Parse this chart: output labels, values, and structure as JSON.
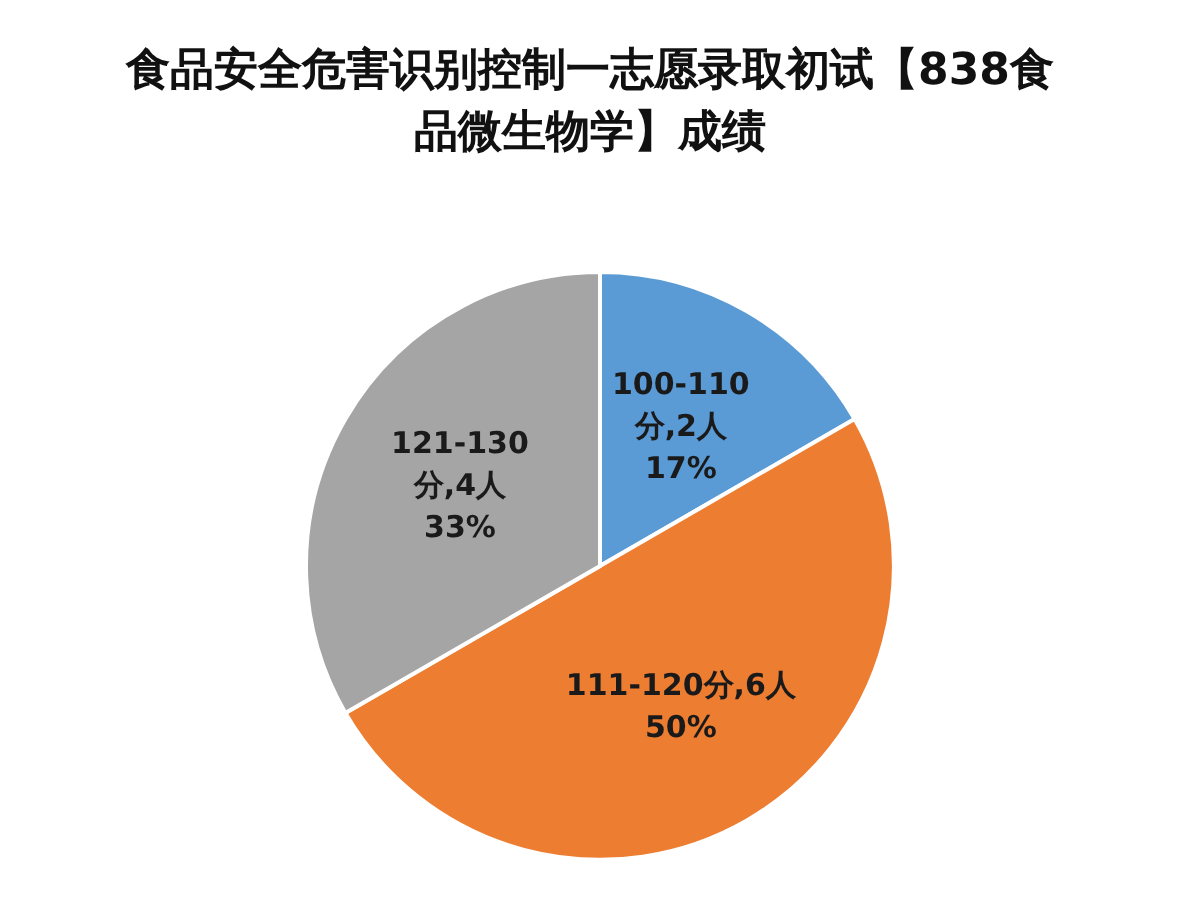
{
  "chart_data": {
    "type": "pie",
    "title": "食品安全危害识别控制一志愿录取初试【838食品微生物学】成绩",
    "categories": [
      "100-110分",
      "111-120分",
      "121-130分"
    ],
    "values": [
      2,
      6,
      4
    ],
    "colors": [
      "#5b9bd5",
      "#ed7d31",
      "#a5a5a5"
    ],
    "value_labels": [
      "2人\n17%",
      "6人\n50%",
      "4人\n33%"
    ],
    "legend": false
  }
}
